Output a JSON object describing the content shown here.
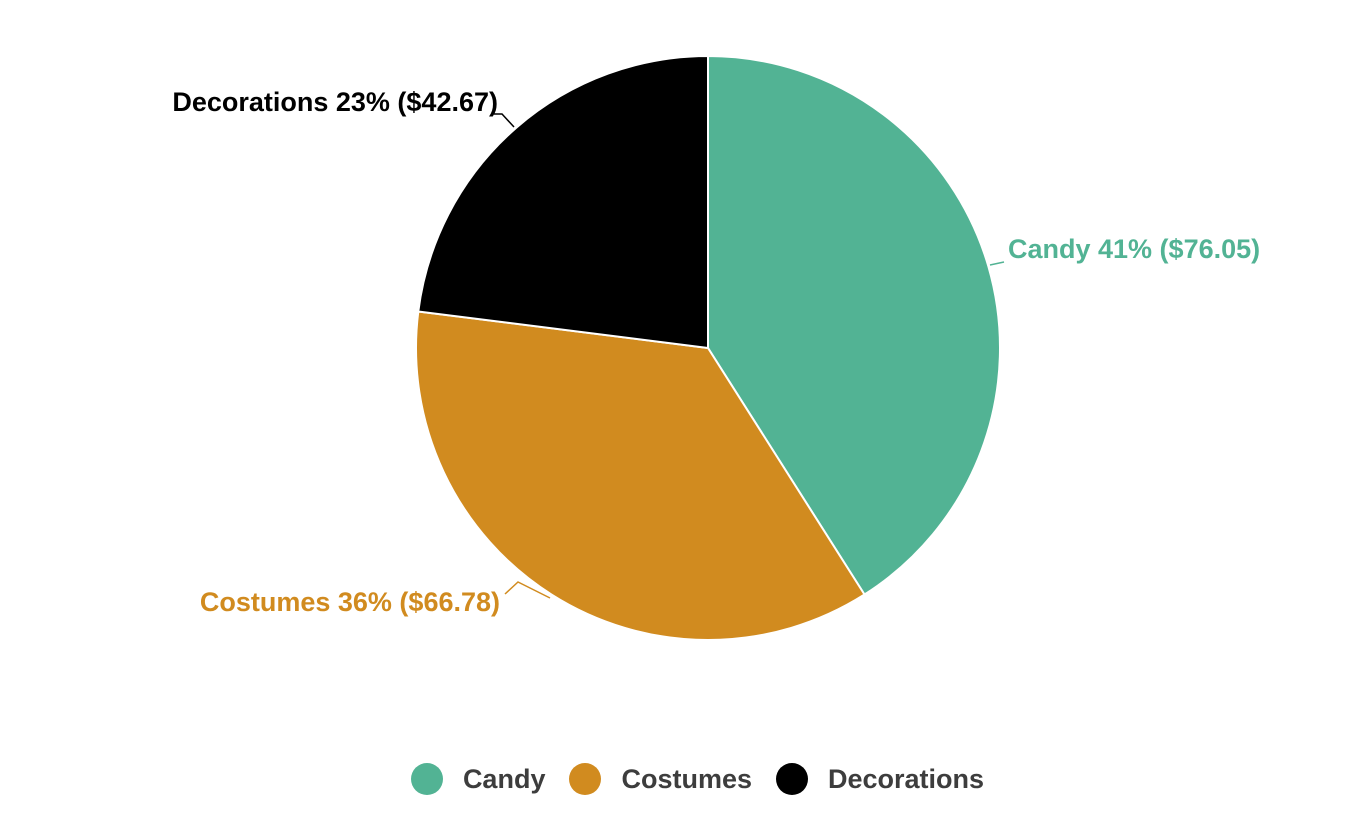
{
  "chart_data": {
    "type": "pie",
    "slices": [
      {
        "name": "Candy",
        "label": "Candy 41% ($76.05)",
        "percent": 41,
        "value": 76.05,
        "color": "#52b394"
      },
      {
        "name": "Costumes",
        "label": "Costumes 36% ($66.78)",
        "percent": 36,
        "value": 66.78,
        "color": "#d18b1f"
      },
      {
        "name": "Decorations",
        "label": "Decorations 23% ($42.67)",
        "percent": 23,
        "value": 42.67,
        "color": "#000000"
      }
    ],
    "legend": {
      "position": "bottom",
      "items": [
        "Candy",
        "Costumes",
        "Decorations"
      ]
    }
  }
}
